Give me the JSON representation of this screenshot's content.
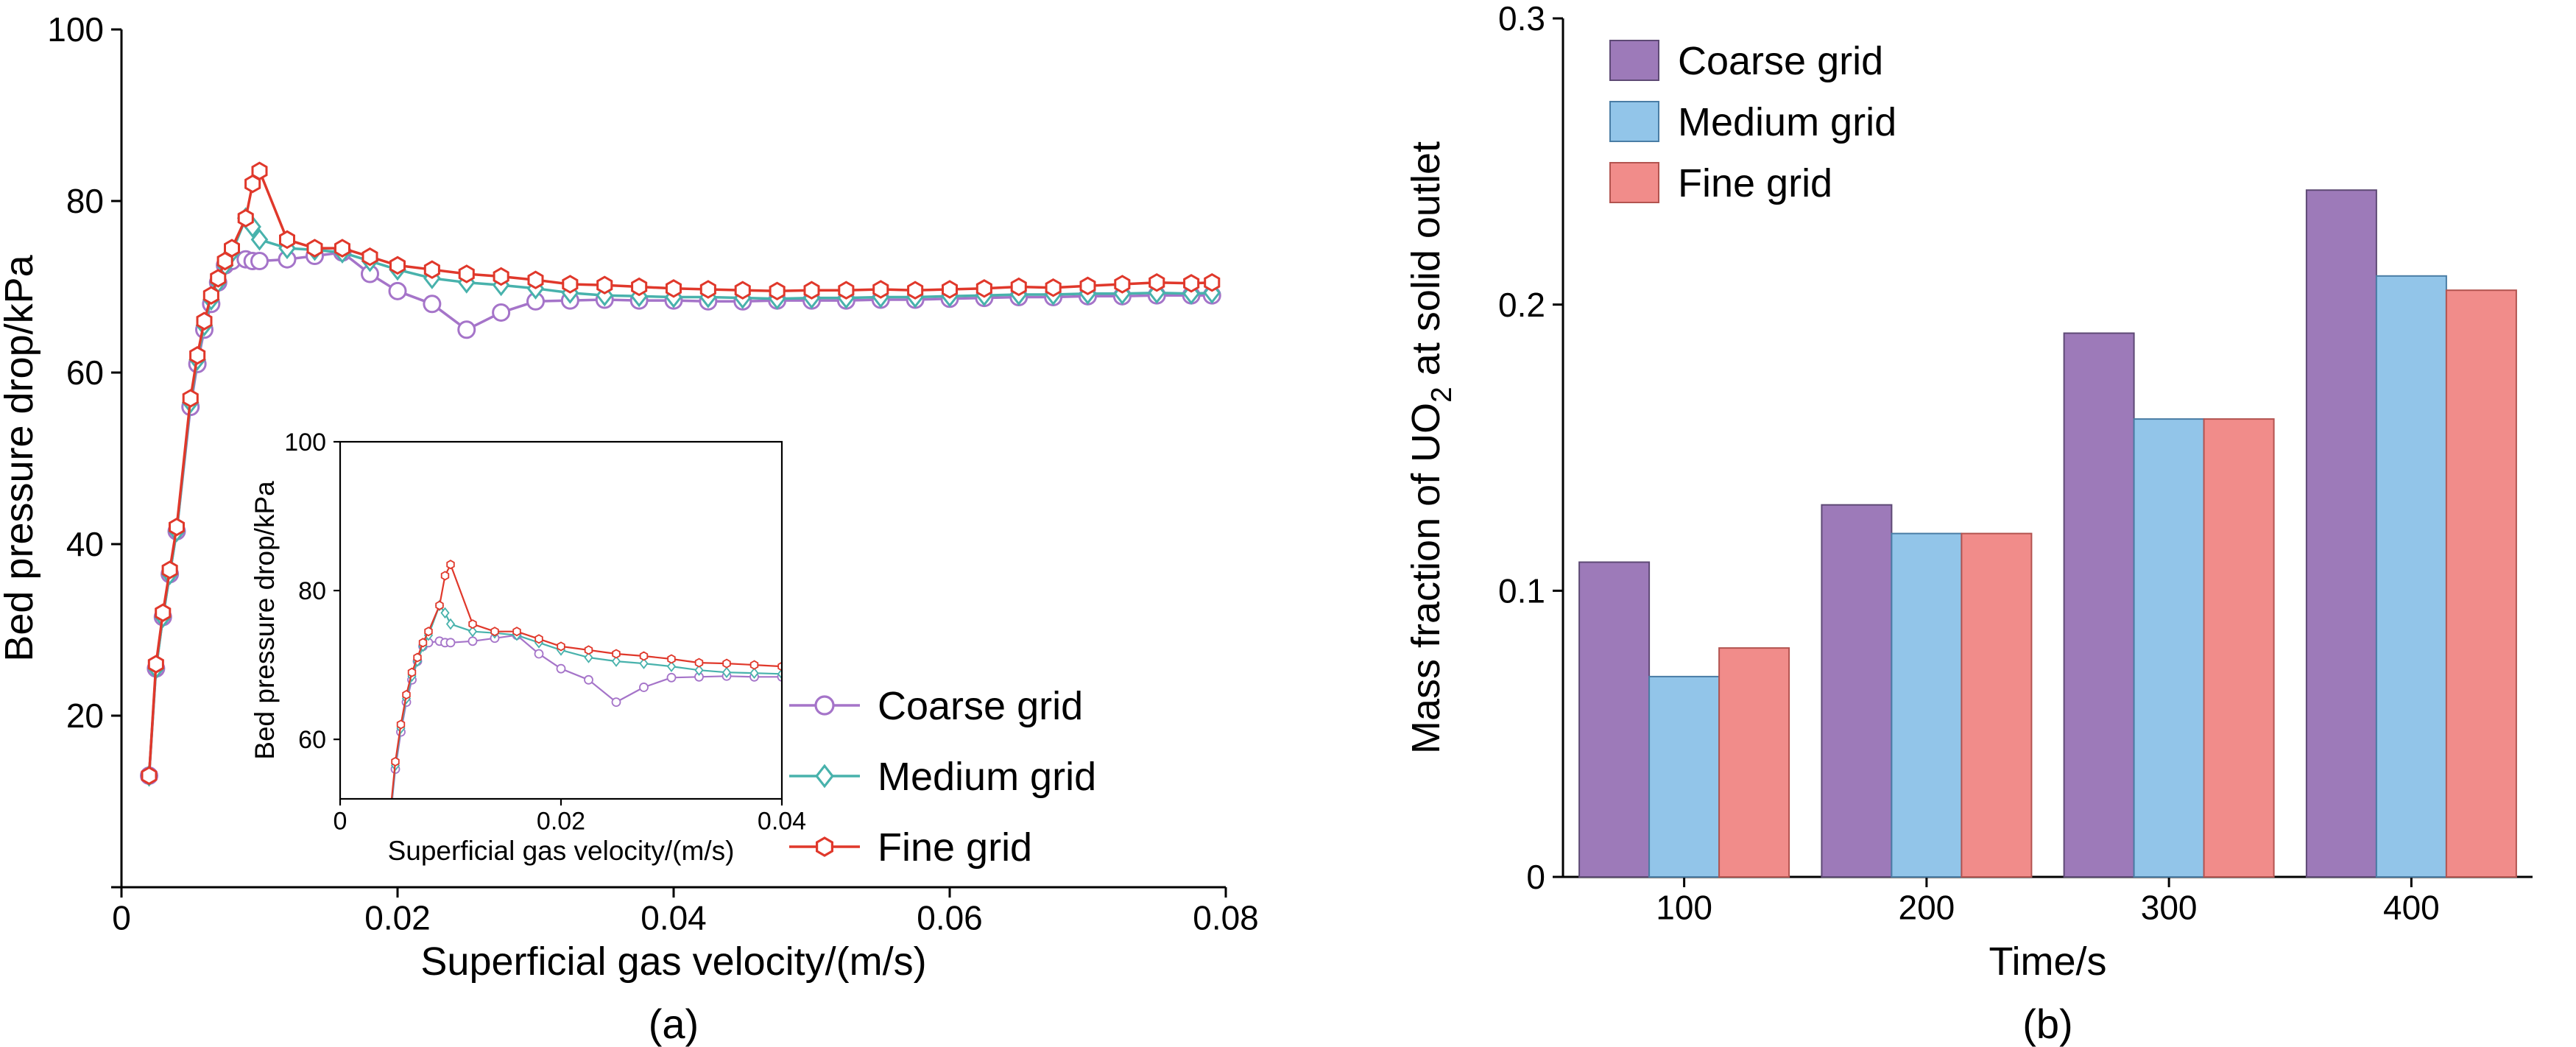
{
  "chart_data": [
    {
      "id": "a",
      "type": "line",
      "caption": "(a)",
      "title": "",
      "xlabel": "Superficial gas velocity/(m/s)",
      "ylabel": "Bed pressure drop/kPa",
      "xlim": [
        0,
        0.08
      ],
      "ylim": [
        0,
        100
      ],
      "xticks": [
        0,
        0.02,
        0.04,
        0.06,
        0.08
      ],
      "xtick_labels": [
        "0",
        "0.02",
        "0.04",
        "0.06",
        "0.08"
      ],
      "yticks": [
        0,
        20,
        40,
        60,
        80,
        100
      ],
      "ytick_labels": [
        "",
        "20",
        "40",
        "60",
        "80",
        "100"
      ],
      "grid": false,
      "legend_position": "lower right",
      "x": [
        0.002,
        0.0025,
        0.003,
        0.0035,
        0.004,
        0.005,
        0.0055,
        0.006,
        0.0065,
        0.007,
        0.0075,
        0.008,
        0.009,
        0.0095,
        0.01,
        0.012,
        0.014,
        0.016,
        0.018,
        0.02,
        0.0225,
        0.025,
        0.0275,
        0.03,
        0.0325,
        0.035,
        0.0375,
        0.04,
        0.0425,
        0.045,
        0.0475,
        0.05,
        0.0525,
        0.055,
        0.0575,
        0.06,
        0.0625,
        0.065,
        0.0675,
        0.07,
        0.0725,
        0.075,
        0.0775,
        0.079
      ],
      "series": [
        {
          "name": "Coarse grid",
          "marker": "circle",
          "color": "#a574c9",
          "y": [
            13,
            25.5,
            31.5,
            36.5,
            41.5,
            56,
            61,
            65,
            68,
            70.5,
            72.5,
            73,
            73.2,
            73,
            73,
            73.2,
            73.6,
            74,
            71.5,
            69.5,
            68,
            65,
            67,
            68.3,
            68.4,
            68.5,
            68.4,
            68.4,
            68.3,
            68.3,
            68.4,
            68.4,
            68.4,
            68.5,
            68.5,
            68.6,
            68.7,
            68.8,
            68.8,
            68.9,
            68.9,
            69,
            69,
            69
          ]
        },
        {
          "name": "Medium grid",
          "marker": "diamond",
          "color": "#48b2ac",
          "y": [
            13,
            25.5,
            31.5,
            36.5,
            41.5,
            56.5,
            61.5,
            65.5,
            68.5,
            70.5,
            72.5,
            74,
            78,
            77,
            75.5,
            74.5,
            74.3,
            74,
            73,
            72,
            71,
            70.5,
            70.2,
            69.8,
            69.3,
            69,
            68.9,
            68.8,
            68.8,
            68.7,
            68.6,
            68.7,
            68.7,
            68.8,
            68.8,
            68.9,
            69,
            69.1,
            69.1,
            69.2,
            69.2,
            69.3,
            69.2,
            69.3
          ]
        },
        {
          "name": "Fine grid",
          "marker": "hexagon",
          "color": "#e0382b",
          "y": [
            13,
            26,
            32,
            37,
            42,
            57,
            62,
            66,
            69,
            71,
            73,
            74.5,
            78,
            82,
            83.5,
            75.5,
            74.5,
            74.5,
            73.5,
            72.5,
            72,
            71.5,
            71.2,
            70.8,
            70.3,
            70.2,
            70,
            69.8,
            69.7,
            69.6,
            69.5,
            69.6,
            69.6,
            69.7,
            69.6,
            69.7,
            69.8,
            70,
            69.9,
            70.1,
            70.3,
            70.5,
            70.4,
            70.5
          ]
        }
      ],
      "inset": {
        "xlabel": "Superficial gas velocity/(m/s)",
        "ylabel": "Bed pressure drop/kPa",
        "xlim": [
          0,
          0.04
        ],
        "ylim": [
          52,
          100
        ],
        "xticks": [
          0,
          0.02,
          0.04
        ],
        "xtick_labels": [
          "0",
          "0.02",
          "0.04"
        ],
        "yticks": [
          60,
          80,
          100
        ],
        "ytick_labels": [
          "60",
          "80",
          "100"
        ]
      }
    },
    {
      "id": "b",
      "type": "bar",
      "caption": "(b)",
      "title": "",
      "xlabel": "Time/s",
      "ylabel": "Mass fraction of UO2 at solid outlet",
      "ylabel_parts": {
        "pre": "Mass fraction of UO",
        "sub": "2",
        "post": " at solid outlet"
      },
      "categories": [
        "100",
        "200",
        "300",
        "400"
      ],
      "ylim": [
        0,
        0.3
      ],
      "yticks": [
        0,
        0.1,
        0.2,
        0.3
      ],
      "ytick_labels": [
        "0",
        "0.1",
        "0.2",
        "0.3"
      ],
      "grid": false,
      "legend_position": "upper left",
      "series": [
        {
          "name": "Coarse grid",
          "color": "#9d7ab9",
          "edge": "#5e4a75",
          "values": [
            0.11,
            0.13,
            0.19,
            0.24
          ]
        },
        {
          "name": "Medium grid",
          "color": "#92c5e9",
          "edge": "#4a7da5",
          "values": [
            0.07,
            0.12,
            0.16,
            0.21
          ]
        },
        {
          "name": "Fine grid",
          "color": "#f18c8a",
          "edge": "#b35450",
          "values": [
            0.08,
            0.12,
            0.16,
            0.205
          ]
        }
      ]
    }
  ]
}
